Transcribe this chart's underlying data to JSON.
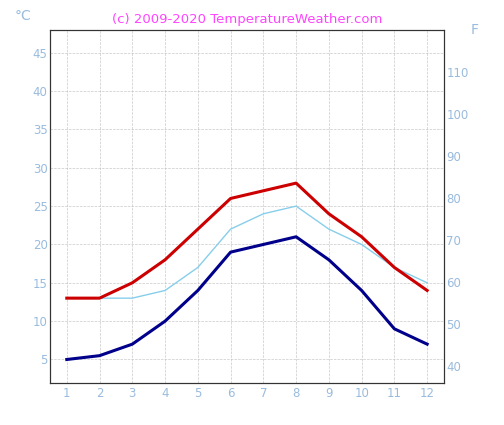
{
  "months": [
    1,
    2,
    3,
    4,
    5,
    6,
    7,
    8,
    9,
    10,
    11,
    12
  ],
  "air_max": [
    13,
    13,
    15,
    18,
    22,
    26,
    27,
    28,
    24,
    21,
    17,
    14
  ],
  "air_min": [
    5,
    5.5,
    7,
    10,
    14,
    19,
    20,
    21,
    18,
    14,
    9,
    7
  ],
  "water": [
    13,
    13,
    13,
    14,
    17,
    22,
    24,
    25,
    22,
    20,
    17,
    15
  ],
  "line_color_max": "#cc0000",
  "line_color_min": "#00008b",
  "line_color_water": "#87ceeb",
  "title": "(c) 2009-2020 TemperatureWeather.com",
  "title_color": "#ff44ff",
  "ylabel_left": "°C",
  "ylabel_right": "F",
  "ylim_left": [
    2,
    48
  ],
  "ylim_right": [
    36,
    120
  ],
  "yticks_left": [
    5,
    10,
    15,
    20,
    25,
    30,
    35,
    40,
    45
  ],
  "yticks_right": [
    40,
    50,
    60,
    70,
    80,
    90,
    100,
    110
  ],
  "xticks": [
    1,
    2,
    3,
    4,
    5,
    6,
    7,
    8,
    9,
    10,
    11,
    12
  ],
  "tick_color": "#99bbdd",
  "label_color": "#99bbdd",
  "background_color": "#ffffff",
  "grid_color": "#bbbbbb",
  "linewidth_max": 2.2,
  "linewidth_min": 2.2,
  "linewidth_water": 1.0,
  "title_fontsize": 9.5,
  "tick_fontsize": 8.5
}
